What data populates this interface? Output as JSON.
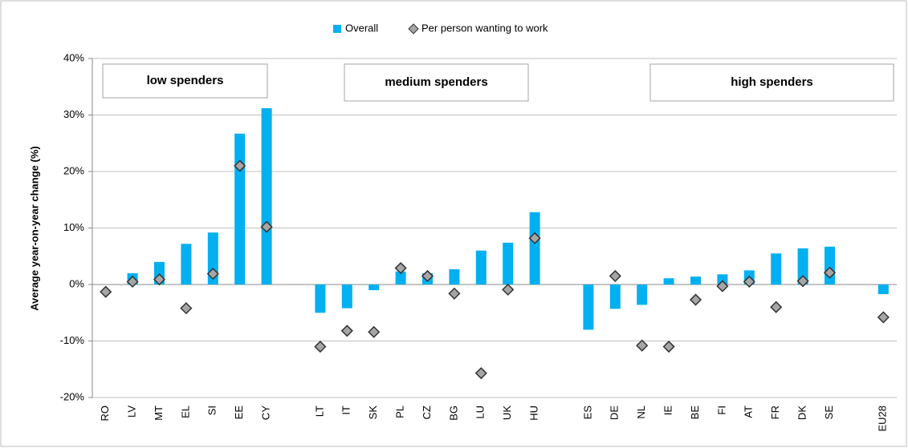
{
  "chart_data": {
    "type": "bar",
    "y_label": "Average year-on-year change (%)",
    "categories": [
      "RO",
      "LV",
      "MT",
      "EL",
      "SI",
      "EE",
      "CY",
      null,
      "LT",
      "IT",
      "SK",
      "PL",
      "CZ",
      "BG",
      "LU",
      "UK",
      "HU",
      null,
      "ES",
      "DE",
      "NL",
      "IE",
      "BE",
      "FI",
      "AT",
      "FR",
      "DK",
      "SE",
      null,
      "EU28"
    ],
    "series": [
      {
        "name": "Overall",
        "type": "bar",
        "color": "#00b0f0",
        "values": [
          0,
          2.0,
          4.0,
          7.2,
          9.2,
          26.7,
          31.2,
          null,
          -5.0,
          -4.2,
          -1.0,
          2.3,
          2.0,
          2.7,
          6.0,
          7.4,
          12.8,
          null,
          -8.0,
          -4.3,
          -3.6,
          1.1,
          1.4,
          1.8,
          2.5,
          5.5,
          6.4,
          6.7,
          null,
          -1.7
        ]
      },
      {
        "name": "Per person wanting to work",
        "type": "scatter",
        "color": "#a6a6a6",
        "values": [
          -1.3,
          0.5,
          0.9,
          -4.2,
          1.9,
          21.0,
          10.2,
          null,
          -11.0,
          -8.2,
          -8.4,
          2.9,
          1.5,
          -1.6,
          -15.7,
          -0.9,
          8.2,
          null,
          null,
          1.5,
          -10.8,
          -11.0,
          -2.7,
          -0.3,
          0.5,
          -4.0,
          0.6,
          2.1,
          null,
          -5.8
        ]
      }
    ],
    "ylim": [
      -20,
      40
    ],
    "yticks": [
      {
        "value": -20,
        "label": "-20%"
      },
      {
        "value": -10,
        "label": "-10%"
      },
      {
        "value": 0,
        "label": "0%"
      },
      {
        "value": 10,
        "label": "10%"
      },
      {
        "value": 20,
        "label": "20%"
      },
      {
        "value": 30,
        "label": "30%"
      },
      {
        "value": 40,
        "label": "40%"
      }
    ],
    "grid": true,
    "legend": "top",
    "annotations": [
      "low spenders",
      "medium spenders",
      "high spenders"
    ]
  }
}
